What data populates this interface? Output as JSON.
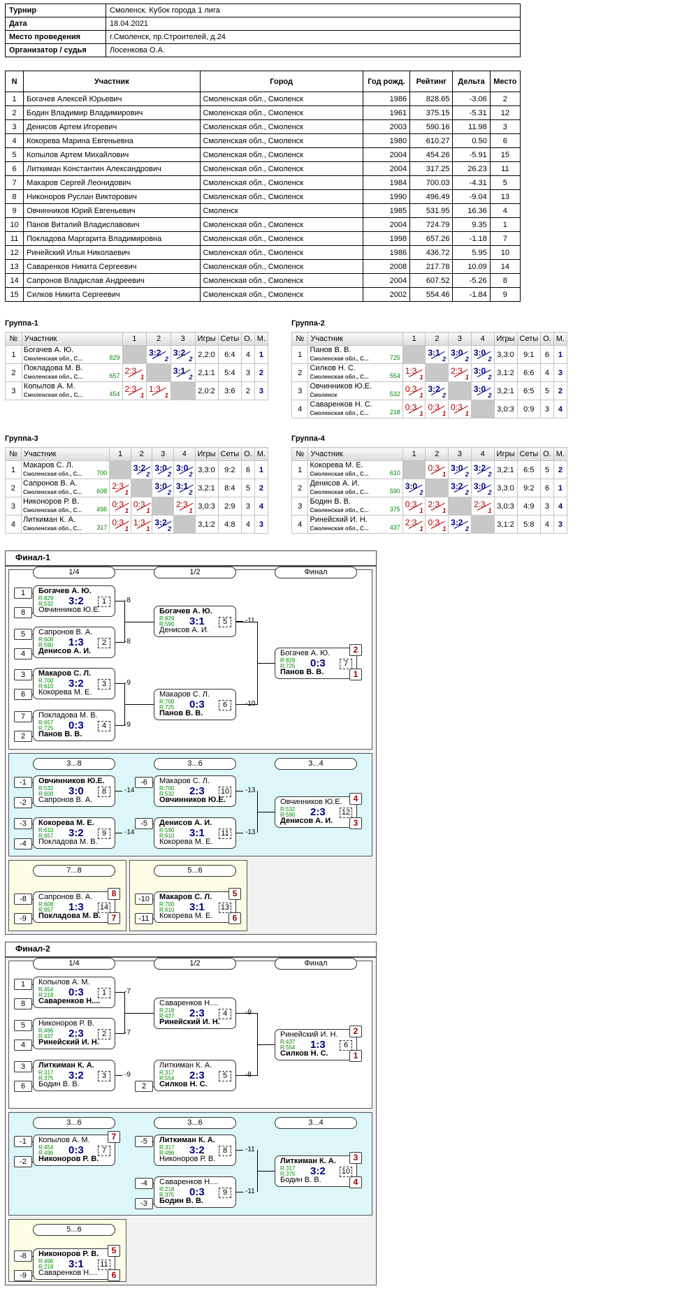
{
  "info": {
    "rows": [
      {
        "k": "Турнир",
        "v": "Смоленск. Кубок города 1 лига"
      },
      {
        "k": "Дата",
        "v": "18.04.2021"
      },
      {
        "k": "Место проведения",
        "v": "г.Смоленск, пр.Строителей, д.24"
      },
      {
        "k": "Организатор / судья",
        "v": "Лосенкова О.А."
      }
    ]
  },
  "players": {
    "headers": [
      "N",
      "Участник",
      "Город",
      "Год рожд.",
      "Рейтинг",
      "Дельта",
      "Место"
    ],
    "rows": [
      [
        "1",
        "Богачев Алексей Юрьевич",
        "Смоленская обл., Смоленск",
        "1986",
        "828.65",
        "-3.06",
        "2"
      ],
      [
        "2",
        "Бодин Владимир Владимирович",
        "Смоленская обл., Смоленск",
        "1961",
        "375.15",
        "-5.31",
        "12"
      ],
      [
        "3",
        "Денисов Артем Игоревич",
        "Смоленская обл., Смоленск",
        "2003",
        "590.16",
        "11.98",
        "3"
      ],
      [
        "4",
        "Кокорева Марина Евгеньевна",
        "Смоленская обл., Смоленск",
        "1980",
        "610.27",
        "0.50",
        "6"
      ],
      [
        "5",
        "Копылов Артем Михайлович",
        "Смоленская обл., Смоленск",
        "2004",
        "454.26",
        "-5.91",
        "15"
      ],
      [
        "6",
        "Литкиман Константин  Александрович",
        "Смоленская обл., Смоленск",
        "2004",
        "317.25",
        "26.23",
        "11"
      ],
      [
        "7",
        "Макаров Сергей Леонидович",
        "Смоленская обл., Смоленск",
        "1984",
        "700.03",
        "-4.31",
        "5"
      ],
      [
        "8",
        "Никоноров Руслан Викторович",
        "Смоленская обл., Смоленск",
        "1990",
        "496.49",
        "-9.04",
        "13"
      ],
      [
        "9",
        "Овчинников Юрий Евгеньевич",
        "Смоленск",
        "1985",
        "531.95",
        "16.36",
        "4"
      ],
      [
        "10",
        "Панов Виталий Владиславович",
        "Смоленская обл., Смоленск",
        "2004",
        "724.79",
        "9.35",
        "1"
      ],
      [
        "11",
        "Покладова Маргарита Владимировна",
        "Смоленская обл., Смоленск",
        "1998",
        "657.26",
        "-1.18",
        "7"
      ],
      [
        "12",
        "Ринейский Илья Николаевич",
        "Смоленская обл., Смоленск",
        "1986",
        "436.72",
        "5.95",
        "10"
      ],
      [
        "13",
        "Саваренков Никита Сергеевич",
        "Смоленская обл., Смоленск",
        "2008",
        "217.78",
        "10.09",
        "14"
      ],
      [
        "14",
        "Сапронов Владислав Андреевич",
        "Смоленская обл., Смоленск",
        "2004",
        "607.52",
        "-5.26",
        "8"
      ],
      [
        "15",
        "Силков Никита Сергеевич",
        "Смоленская обл., Смоленск",
        "2002",
        "554.46",
        "-1.84",
        "9"
      ]
    ]
  },
  "groups": [
    {
      "title": "Группа-1",
      "headers": [
        "№",
        "Участник",
        "1",
        "2",
        "3",
        "Игры",
        "Сеты",
        "О.",
        "М."
      ],
      "rows": [
        {
          "n": "1",
          "name": "Богачев А. Ю.",
          "city": "Смоленская обл., С...",
          "rating": "829",
          "cells": [
            null,
            {
              "s": "3:2",
              "p": "2",
              "w": true
            },
            {
              "s": "3:2",
              "p": "2",
              "w": true
            }
          ],
          "games": "2,2:0",
          "sets": "6:4",
          "pts": "4",
          "place": "1"
        },
        {
          "n": "2",
          "name": "Покладова М. В.",
          "city": "Смоленская обл., С...",
          "rating": "657",
          "cells": [
            {
              "s": "2:3",
              "p": "1",
              "w": false
            },
            null,
            {
              "s": "3:1",
              "p": "2",
              "w": true
            }
          ],
          "games": "2,1:1",
          "sets": "5:4",
          "pts": "3",
          "place": "2"
        },
        {
          "n": "3",
          "name": "Копылов А. М.",
          "city": "Смоленская обл., С...",
          "rating": "454",
          "cells": [
            {
              "s": "2:3",
              "p": "1",
              "w": false
            },
            {
              "s": "1:3",
              "p": "1",
              "w": false
            },
            null
          ],
          "games": "2,0:2",
          "sets": "3:6",
          "pts": "2",
          "place": "3"
        }
      ]
    },
    {
      "title": "Группа-2",
      "headers": [
        "№",
        "Участник",
        "1",
        "2",
        "3",
        "4",
        "Игры",
        "Сеты",
        "О.",
        "М."
      ],
      "rows": [
        {
          "n": "1",
          "name": "Панов В. В.",
          "city": "Смоленская обл., С...",
          "rating": "725",
          "cells": [
            null,
            {
              "s": "3:1",
              "p": "2",
              "w": true
            },
            {
              "s": "3:0",
              "p": "2",
              "w": true
            },
            {
              "s": "3:0",
              "p": "2",
              "w": true
            }
          ],
          "games": "3,3:0",
          "sets": "9:1",
          "pts": "6",
          "place": "1"
        },
        {
          "n": "2",
          "name": "Силков Н. С.",
          "city": "Смоленская обл., С...",
          "rating": "554",
          "cells": [
            {
              "s": "1:3",
              "p": "1",
              "w": false
            },
            null,
            {
              "s": "2:3",
              "p": "1",
              "w": false
            },
            {
              "s": "3:0",
              "p": "2",
              "w": true
            }
          ],
          "games": "3,1:2",
          "sets": "6:6",
          "pts": "4",
          "place": "3"
        },
        {
          "n": "3",
          "name": "Овчинников Ю.Е.",
          "city": "Смоленск",
          "rating": "532",
          "cells": [
            {
              "s": "0:3",
              "p": "1",
              "w": false
            },
            {
              "s": "3:2",
              "p": "2",
              "w": true
            },
            null,
            {
              "s": "3:0",
              "p": "2",
              "w": true
            }
          ],
          "games": "3,2:1",
          "sets": "6:5",
          "pts": "5",
          "place": "2"
        },
        {
          "n": "4",
          "name": "Саваренков Н. С.",
          "city": "Смоленская обл., С...",
          "rating": "218",
          "cells": [
            {
              "s": "0:3",
              "p": "1",
              "w": false
            },
            {
              "s": "0:3",
              "p": "1",
              "w": false
            },
            {
              "s": "0:3",
              "p": "1",
              "w": false
            },
            null
          ],
          "games": "3,0:3",
          "sets": "0:9",
          "pts": "3",
          "place": "4"
        }
      ]
    },
    {
      "title": "Группа-3",
      "headers": [
        "№",
        "Участник",
        "1",
        "2",
        "3",
        "4",
        "Игры",
        "Сеты",
        "О.",
        "М."
      ],
      "rows": [
        {
          "n": "1",
          "name": "Макаров С. Л.",
          "city": "Смоленская обл., С...",
          "rating": "700",
          "cells": [
            null,
            {
              "s": "3:2",
              "p": "2",
              "w": true
            },
            {
              "s": "3:0",
              "p": "2",
              "w": true
            },
            {
              "s": "3:0",
              "p": "2",
              "w": true
            }
          ],
          "games": "3,3:0",
          "sets": "9:2",
          "pts": "6",
          "place": "1"
        },
        {
          "n": "2",
          "name": "Сапронов В. А.",
          "city": "Смоленская обл., С...",
          "rating": "608",
          "cells": [
            {
              "s": "2:3",
              "p": "1",
              "w": false
            },
            null,
            {
              "s": "3:0",
              "p": "2",
              "w": true
            },
            {
              "s": "3:1",
              "p": "2",
              "w": true
            }
          ],
          "games": "3,2:1",
          "sets": "8:4",
          "pts": "5",
          "place": "2"
        },
        {
          "n": "3",
          "name": "Никоноров Р. В.",
          "city": "Смоленская обл., С...",
          "rating": "496",
          "cells": [
            {
              "s": "0:3",
              "p": "1",
              "w": false
            },
            {
              "s": "0:3",
              "p": "1",
              "w": false
            },
            null,
            {
              "s": "2:3",
              "p": "1",
              "w": false
            }
          ],
          "games": "3,0:3",
          "sets": "2:9",
          "pts": "3",
          "place": "4"
        },
        {
          "n": "4",
          "name": "Литкиман К. А.",
          "city": "Смоленская обл., С...",
          "rating": "317",
          "cells": [
            {
              "s": "0:3",
              "p": "1",
              "w": false
            },
            {
              "s": "1:3",
              "p": "1",
              "w": false
            },
            {
              "s": "3:2",
              "p": "2",
              "w": true
            },
            null
          ],
          "games": "3,1:2",
          "sets": "4:8",
          "pts": "4",
          "place": "3"
        }
      ]
    },
    {
      "title": "Группа-4",
      "headers": [
        "№",
        "Участник",
        "1",
        "2",
        "3",
        "4",
        "Игры",
        "Сеты",
        "О.",
        "М."
      ],
      "rows": [
        {
          "n": "1",
          "name": "Кокорева М. Е.",
          "city": "Смоленская обл., С...",
          "rating": "610",
          "cells": [
            null,
            {
              "s": "0:3",
              "p": "1",
              "w": false
            },
            {
              "s": "3:0",
              "p": "2",
              "w": true
            },
            {
              "s": "3:2",
              "p": "2",
              "w": true
            }
          ],
          "games": "3,2:1",
          "sets": "6:5",
          "pts": "5",
          "place": "2"
        },
        {
          "n": "2",
          "name": "Денисов А. И.",
          "city": "Смоленская обл., С...",
          "rating": "590",
          "cells": [
            {
              "s": "3:0",
              "p": "2",
              "w": true
            },
            null,
            {
              "s": "3:2",
              "p": "2",
              "w": true
            },
            {
              "s": "3:0",
              "p": "2",
              "w": true
            }
          ],
          "games": "3,3:0",
          "sets": "9:2",
          "pts": "6",
          "place": "1"
        },
        {
          "n": "3",
          "name": "Бодин В. В.",
          "city": "Смоленская обл., С...",
          "rating": "375",
          "cells": [
            {
              "s": "0:3",
              "p": "1",
              "w": false
            },
            {
              "s": "2:3",
              "p": "1",
              "w": false
            },
            null,
            {
              "s": "2:3",
              "p": "1",
              "w": false
            }
          ],
          "games": "3,0:3",
          "sets": "4:9",
          "pts": "3",
          "place": "4"
        },
        {
          "n": "4",
          "name": "Ринейский И. Н.",
          "city": "Смоленская обл., С...",
          "rating": "437",
          "cells": [
            {
              "s": "2:3",
              "p": "1",
              "w": false
            },
            {
              "s": "0:3",
              "p": "1",
              "w": false
            },
            {
              "s": "3:2",
              "p": "2",
              "w": true
            },
            null
          ],
          "games": "3,1:2",
          "sets": "5:8",
          "pts": "4",
          "place": "3"
        }
      ]
    }
  ],
  "final1": {
    "title": "Финал-1",
    "rounds": [
      {
        "label": "1/4"
      },
      {
        "label": "1/2"
      },
      {
        "label": "Финал"
      },
      {
        "label": "3...8"
      },
      {
        "label": "3...6"
      },
      {
        "label": "3...4"
      },
      {
        "label": "7...8"
      },
      {
        "label": "5...6"
      }
    ],
    "seeds": [
      "1",
      "8",
      "5",
      "4",
      "3",
      "6",
      "7",
      "2",
      "-1",
      "-2",
      "-3",
      "-4",
      "-6",
      "-5",
      "-8",
      "-9",
      "-10",
      "-11"
    ],
    "matches": [
      {
        "top": "Богачев А. Ю.",
        "bot": "Овчинников Ю.Е.",
        "r1": "R:829",
        "r2": "R:532",
        "score": "3:2",
        "num": "1",
        "tb": true,
        "next": "-8"
      },
      {
        "top": "Сапронов В. А.",
        "bot": "Денисов А. И.",
        "r1": "R:608",
        "r2": "R:590",
        "score": "1:3",
        "num": "2",
        "tb": false,
        "next": "-8"
      },
      {
        "top": "Макаров С. Л.",
        "bot": "Кокорева М. Е.",
        "r1": "R:700",
        "r2": "R:610",
        "score": "3:2",
        "num": "3",
        "tb": true,
        "next": "-9"
      },
      {
        "top": "Покладова М. В.",
        "bot": "Панов В. В.",
        "r1": "R:657",
        "r2": "R:725",
        "score": "0:3",
        "num": "4",
        "tb": false,
        "next": "-9"
      },
      {
        "top": "Богачев А. Ю.",
        "bot": "Денисов А. И.",
        "r1": "R:829",
        "r2": "R:590",
        "score": "3:1",
        "num": "5",
        "tb": true,
        "next": "-11"
      },
      {
        "top": "Макаров С. Л.",
        "bot": "Панов В. В.",
        "r1": "R:700",
        "r2": "R:725",
        "score": "0:3",
        "num": "6",
        "tb": false,
        "next": "-10"
      },
      {
        "top": "Богачев А. Ю.",
        "bot": "Панов В. В.",
        "r1": "R:829",
        "r2": "R:725",
        "score": "0:3",
        "num": "7",
        "tb": false,
        "pt": "2",
        "pb": "1"
      },
      {
        "top": "Овчинников Ю.Е.",
        "bot": "Сапронов В. А.",
        "r1": "R:532",
        "r2": "R:608",
        "score": "3:0",
        "num": "8",
        "tb": true,
        "next": "-14"
      },
      {
        "top": "Кокорева М. Е.",
        "bot": "Покладова М. В.",
        "r1": "R:610",
        "r2": "R:657",
        "score": "3:2",
        "num": "9",
        "tb": true,
        "next": "-14"
      },
      {
        "top": "Макаров С. Л.",
        "bot": "Овчинников Ю.Е.",
        "r1": "R:700",
        "r2": "R:532",
        "score": "2:3",
        "num": "10",
        "tb": false,
        "next": "-13"
      },
      {
        "top": "Денисов А. И.",
        "bot": "Кокорева М. Е.",
        "r1": "R:590",
        "r2": "R:610",
        "score": "3:1",
        "num": "11",
        "tb": true,
        "next": "-13"
      },
      {
        "top": "Овчинников Ю.Е.",
        "bot": "Денисов А. И.",
        "r1": "R:532",
        "r2": "R:590",
        "score": "2:3",
        "num": "12",
        "tb": false,
        "pt": "4",
        "pb": "3"
      },
      {
        "top": "Сапронов В. А.",
        "bot": "Покладова М. В.",
        "r1": "R:608",
        "r2": "R:657",
        "score": "1:3",
        "num": "14",
        "tb": false,
        "pt": "8",
        "pb": "7"
      },
      {
        "top": "Макаров С. Л.",
        "bot": "Кокорева М. Е.",
        "r1": "R:700",
        "r2": "R:610",
        "score": "3:1",
        "num": "13",
        "tb": true,
        "pt": "5",
        "pb": "6"
      }
    ]
  },
  "final2": {
    "title": "Финал-2",
    "rounds": [
      {
        "label": "1/4"
      },
      {
        "label": "1/2"
      },
      {
        "label": "Финал"
      },
      {
        "label": "3...6"
      },
      {
        "label": "3...6"
      },
      {
        "label": "3...4"
      },
      {
        "label": "5...6"
      }
    ],
    "seeds": [
      "1",
      "8",
      "5",
      "4",
      "3",
      "6",
      "2",
      "-1",
      "-2",
      "-5",
      "-4",
      "-3",
      "-8",
      "-9"
    ],
    "matches": [
      {
        "top": "Копылов А. М.",
        "bot": "Саваренков Н....",
        "r1": "R:454",
        "r2": "R:218",
        "score": "0:3",
        "num": "1",
        "tb": false,
        "next": "-7"
      },
      {
        "top": "Никоноров Р. В.",
        "bot": "Ринейский И. Н.",
        "r1": "R:496",
        "r2": "R:437",
        "score": "2:3",
        "num": "2",
        "tb": false,
        "next": "-7"
      },
      {
        "top": "Литкиман К. А.",
        "bot": "Бодин В. В.",
        "r1": "R:317",
        "r2": "R:375",
        "score": "3:2",
        "num": "3",
        "tb": true,
        "next": "-9"
      },
      {
        "top": "Саваренков Н....",
        "bot": "Ринейский И. Н.",
        "r1": "R:218",
        "r2": "R:437",
        "score": "2:3",
        "num": "4",
        "tb": false,
        "next": "-9"
      },
      {
        "top": "Литкиман К. А.",
        "bot": "Силков Н. С.",
        "r1": "R:317",
        "r2": "R:554",
        "score": "2:3",
        "num": "5",
        "tb": false,
        "next": "-8"
      },
      {
        "top": "Ринейский И. Н.",
        "bot": "Силков Н. С.",
        "r1": "R:437",
        "r2": "R:554",
        "score": "1:3",
        "num": "6",
        "tb": false,
        "pt": "2",
        "pb": "1"
      },
      {
        "top": "Копылов А. М.",
        "bot": "Никоноров Р. В.",
        "r1": "R:454",
        "r2": "R:496",
        "score": "0:3",
        "num": "7",
        "tb": false,
        "pt": "7"
      },
      {
        "top": "Литкиман К. А.",
        "bot": "Никоноров Р. В.",
        "r1": "R:317",
        "r2": "R:496",
        "score": "3:2",
        "num": "8",
        "tb": true,
        "next": "-11"
      },
      {
        "top": "Саваренков Н....",
        "bot": "Бодин В. В.",
        "r1": "R:218",
        "r2": "R:375",
        "score": "0:3",
        "num": "9",
        "tb": false,
        "next": "-11"
      },
      {
        "top": "Литкиман К. А.",
        "bot": "Бодин В. В.",
        "r1": "R:317",
        "r2": "R:375",
        "score": "3:2",
        "num": "10",
        "tb": true,
        "pt": "3",
        "pb": "4"
      },
      {
        "top": "Никоноров Р. В.",
        "bot": "Саваренков Н....",
        "r1": "R:496",
        "r2": "R:218",
        "score": "3:1",
        "num": "11",
        "tb": true,
        "pt": "5",
        "pb": "6"
      }
    ]
  }
}
